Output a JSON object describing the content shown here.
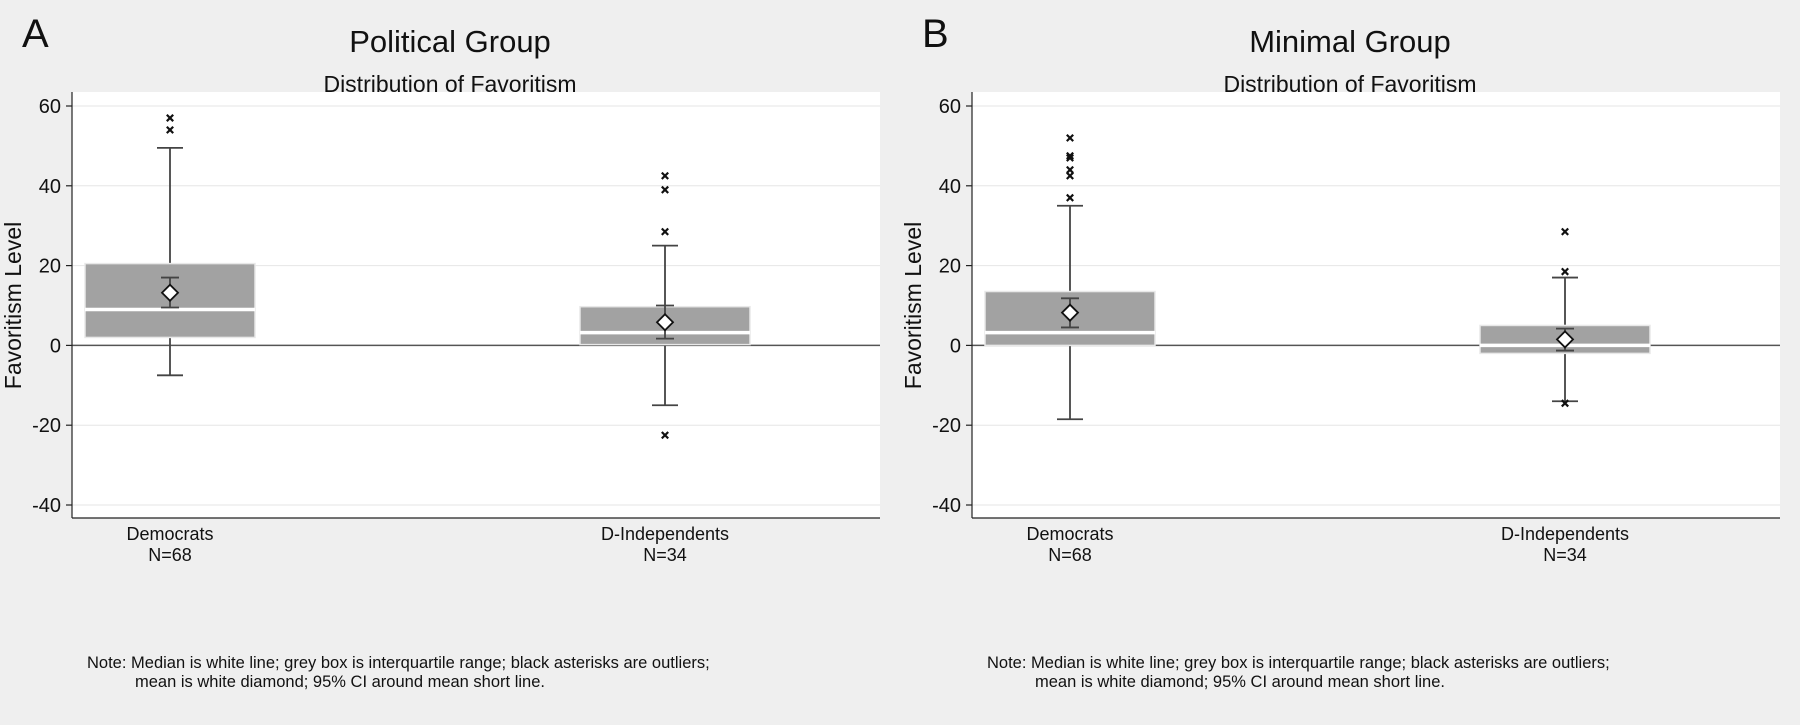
{
  "figure": {
    "panels": [
      {
        "letter": "A",
        "title": "Political Group",
        "subtitle": "Distribution of Favoritism",
        "note_line1": "Note: Median is white line; grey box is interquartile range; black asterisks are outliers;",
        "note_line2": "mean is white diamond; 95% CI around mean short line."
      },
      {
        "letter": "B",
        "title": "Minimal Group",
        "subtitle": "Distribution of Favoritism",
        "note_line1": "Note: Median is white line; grey box is interquartile range; black asterisks are outliers;",
        "note_line2": "mean is white diamond; 95% CI around mean short line."
      }
    ]
  },
  "chart_data": [
    {
      "type": "box",
      "title": "Political Group",
      "subtitle": "Distribution of Favoritism",
      "ylabel": "Favoritism Level",
      "ylim": [
        -44,
        63
      ],
      "yticks": [
        60,
        40,
        20,
        0,
        -20,
        -40
      ],
      "grid": true,
      "categories": [
        "Democrats",
        "D-Independents"
      ],
      "category_sublabels": [
        "N=68",
        "N=34"
      ],
      "boxes": [
        {
          "whisker_low": -7.5,
          "q1": 2,
          "median": 9,
          "q3": 20.5,
          "whisker_high": 49.5,
          "mean": 13.2,
          "ci_low": 9.5,
          "ci_high": 17,
          "outliers": [
            54,
            57
          ]
        },
        {
          "whisker_low": -15,
          "q1": 0.2,
          "median": 3.2,
          "q3": 9.7,
          "whisker_high": 25,
          "mean": 5.8,
          "ci_low": 1.7,
          "ci_high": 10,
          "outliers": [
            28.5,
            39,
            42.5,
            -22.5
          ]
        }
      ],
      "colors": {
        "box": "#a2a2a2",
        "median": "#ffffff",
        "whisker": "#444444",
        "outlier": "#111111"
      }
    },
    {
      "type": "box",
      "title": "Minimal Group",
      "subtitle": "Distribution of Favoritism",
      "ylabel": "Favoritism Level",
      "ylim": [
        -44,
        63
      ],
      "yticks": [
        60,
        40,
        20,
        0,
        -20,
        -40
      ],
      "grid": true,
      "categories": [
        "Democrats",
        "D-Independents"
      ],
      "category_sublabels": [
        "N=68",
        "N=34"
      ],
      "boxes": [
        {
          "whisker_low": -18.5,
          "q1": 0,
          "median": 3.2,
          "q3": 13.5,
          "whisker_high": 35,
          "mean": 8.2,
          "ci_low": 4.5,
          "ci_high": 11.8,
          "outliers": [
            37,
            42.5,
            44,
            47,
            47.5,
            52
          ]
        },
        {
          "whisker_low": -14,
          "q1": -2,
          "median": 0,
          "q3": 5,
          "whisker_high": 17,
          "mean": 1.5,
          "ci_low": -1.3,
          "ci_high": 4.2,
          "outliers": [
            18.5,
            28.5,
            -14.5
          ]
        }
      ],
      "colors": {
        "box": "#a2a2a2",
        "median": "#ffffff",
        "whisker": "#444444",
        "outlier": "#111111"
      }
    }
  ]
}
